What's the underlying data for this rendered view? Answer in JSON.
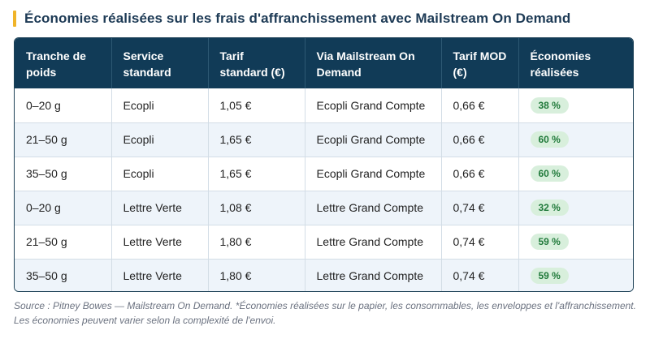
{
  "title": "Économies réalisées sur les frais d'affranchissement avec Mailstream On Demand",
  "colors": {
    "accent": "#f0b429",
    "header_bg": "#113b57",
    "badge_bg": "#d8efdc",
    "badge_text": "#217a3b"
  },
  "table": {
    "headers": [
      "Tranche de poids",
      "Service standard",
      "Tarif standard (€)",
      "Via Mailstream On Demand",
      "Tarif MOD (€)",
      "Économies réalisées"
    ],
    "rows": [
      [
        "0–20 g",
        "Ecopli",
        "1,05 €",
        "Ecopli Grand Compte",
        "0,66 €",
        "38 %"
      ],
      [
        "21–50 g",
        "Ecopli",
        "1,65 €",
        "Ecopli Grand Compte",
        "0,66 €",
        "60 %"
      ],
      [
        "35–50 g",
        "Ecopli",
        "1,65 €",
        "Ecopli Grand Compte",
        "0,66 €",
        "60 %"
      ],
      [
        "0–20 g",
        "Lettre Verte",
        "1,08 €",
        "Lettre Grand Compte",
        "0,74 €",
        "32 %"
      ],
      [
        "21–50 g",
        "Lettre Verte",
        "1,80 €",
        "Lettre Grand Compte",
        "0,74 €",
        "59 %"
      ],
      [
        "35–50 g",
        "Lettre Verte",
        "1,80 €",
        "Lettre Grand Compte",
        "0,74 €",
        "59 %"
      ]
    ]
  },
  "source": "Source : Pitney Bowes — Mailstream On Demand. *Économies réalisées sur le papier, les consommables, les enveloppes et l'affranchissement. Les économies peuvent varier selon la complexité de l'envoi."
}
